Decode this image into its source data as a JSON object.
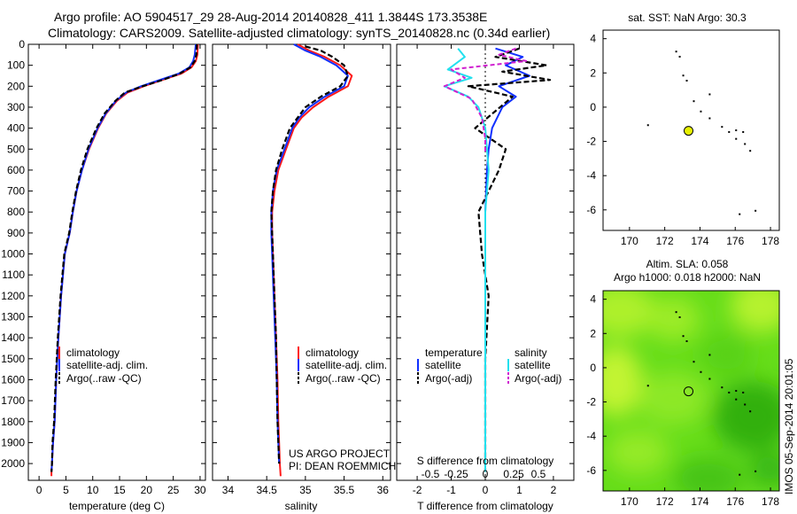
{
  "header": {
    "line1": "Argo profile: AO 5904517_29 28-Aug-2014 20140828_411 1.3844S 173.3538E",
    "line2": "Climatology: CARS2009. Satellite-adjusted climatology: synTS_20140828.nc (0.34d earlier)"
  },
  "side_label": "IMOS 05-Sep-2014 20:01:05",
  "colors": {
    "climatology": "#ff1a1a",
    "satellite": "#1030ff",
    "argo": "#000000",
    "salinity_satellite": "#22e0ee",
    "salinity_argo": "#d020d0",
    "float_marker": "#e6f000",
    "sla_field": "#66dd1a"
  },
  "chart_data": [
    {
      "type": "line",
      "id": "temperature-profile",
      "xlabel": "temperature (deg C)",
      "ylabel": "",
      "xlim": [
        -2,
        31
      ],
      "ylim": [
        2080,
        0
      ],
      "xticks": [
        0,
        5,
        10,
        15,
        20,
        25,
        30
      ],
      "yticks": [
        0,
        100,
        200,
        300,
        400,
        500,
        600,
        700,
        800,
        900,
        1000,
        1100,
        1200,
        1300,
        1400,
        1500,
        1600,
        1700,
        1800,
        1900,
        2000
      ],
      "legend": [
        "climatology",
        "satellite-adj. clim.",
        "Argo(..raw -QC)"
      ],
      "series": [
        {
          "name": "climatology",
          "x": [
            29.6,
            29.5,
            29.2,
            28.4,
            26.5,
            23.0,
            19.5,
            16.5,
            14.5,
            12.5,
            11.0,
            9.3,
            8.0,
            7.0,
            6.3,
            5.7,
            4.8,
            4.1,
            3.6,
            3.2,
            2.9,
            2.6,
            2.4,
            2.3,
            2.3
          ],
          "y": [
            0,
            50,
            80,
            110,
            140,
            170,
            200,
            230,
            270,
            330,
            400,
            500,
            600,
            700,
            800,
            900,
            1000,
            1200,
            1400,
            1600,
            1800,
            1900,
            2000,
            2040,
            2060
          ]
        },
        {
          "name": "satellite-adj. clim.",
          "x": [
            29.2,
            29.0,
            28.7,
            28.0,
            26.0,
            22.5,
            19.0,
            16.2,
            14.3,
            12.4,
            10.9,
            9.2,
            8.0,
            7.0,
            6.3,
            5.7,
            4.8,
            4.1,
            3.6,
            3.2,
            2.9,
            2.6,
            2.4,
            2.3
          ],
          "y": [
            0,
            50,
            80,
            110,
            140,
            170,
            200,
            230,
            270,
            330,
            400,
            500,
            600,
            700,
            800,
            900,
            1000,
            1200,
            1400,
            1600,
            1800,
            1900,
            2000,
            2040
          ]
        },
        {
          "name": "Argo(..raw -QC)",
          "x": [
            29.4,
            29.3,
            29.0,
            28.2,
            26.2,
            23.0,
            19.3,
            16.0,
            14.2,
            12.2,
            10.7,
            9.0,
            7.8,
            6.9,
            6.2,
            5.6,
            4.7,
            4.0,
            3.5,
            3.1,
            2.8,
            2.5,
            2.4,
            2.3
          ],
          "y": [
            0,
            50,
            80,
            110,
            140,
            170,
            200,
            230,
            270,
            330,
            400,
            500,
            600,
            700,
            800,
            900,
            1000,
            1200,
            1400,
            1600,
            1800,
            1900,
            2000,
            2040
          ]
        }
      ]
    },
    {
      "type": "line",
      "id": "salinity-profile",
      "xlabel": "salinity",
      "xlim": [
        33.8,
        36.1
      ],
      "ylim": [
        2080,
        0
      ],
      "xticks": [
        34,
        34.5,
        35,
        35.5,
        36
      ],
      "legend": [
        "climatology",
        "satellite-adj. clim.",
        "Argo(..raw -QC)"
      ],
      "annotation": [
        "US ARGO PROJECT",
        "PI: DEAN ROEMMICH"
      ],
      "series": [
        {
          "name": "climatology",
          "x": [
            34.9,
            35.05,
            35.25,
            35.45,
            35.6,
            35.55,
            35.3,
            35.1,
            34.95,
            34.85,
            34.75,
            34.65,
            34.6,
            34.57,
            34.57,
            34.58,
            34.6,
            34.62,
            34.64,
            34.65,
            34.66,
            34.67,
            34.68
          ],
          "y": [
            0,
            30,
            60,
            100,
            150,
            200,
            250,
            300,
            350,
            400,
            500,
            600,
            700,
            800,
            900,
            1000,
            1200,
            1400,
            1600,
            1800,
            1900,
            2000,
            2060
          ]
        },
        {
          "name": "satellite-adj. clim.",
          "x": [
            34.85,
            35.0,
            35.2,
            35.4,
            35.55,
            35.5,
            35.25,
            35.05,
            34.92,
            34.83,
            34.73,
            34.63,
            34.58,
            34.56,
            34.56,
            34.57,
            34.59,
            34.61,
            34.63,
            34.64,
            34.65,
            34.66
          ],
          "y": [
            0,
            30,
            60,
            100,
            150,
            200,
            250,
            300,
            350,
            400,
            500,
            600,
            700,
            800,
            900,
            1000,
            1200,
            1400,
            1600,
            1800,
            1900,
            2000
          ]
        },
        {
          "name": "Argo(..raw -QC)",
          "x": [
            35.0,
            35.2,
            35.35,
            35.5,
            35.55,
            35.45,
            35.2,
            35.0,
            34.9,
            34.8,
            34.7,
            34.62,
            34.58,
            34.56,
            34.57,
            34.58,
            34.6,
            34.62,
            34.63,
            34.64,
            34.65,
            34.66
          ],
          "y": [
            10,
            30,
            60,
            100,
            150,
            200,
            250,
            300,
            350,
            400,
            500,
            600,
            700,
            800,
            900,
            1000,
            1200,
            1400,
            1600,
            1800,
            1900,
            2000
          ]
        }
      ]
    },
    {
      "type": "line",
      "id": "difference-profile",
      "xlabel": "T difference from climatology",
      "xlabel_top": "S difference from climatology",
      "xlim": [
        -2.6,
        2.6
      ],
      "ylim": [
        2080,
        0
      ],
      "xticks": [
        -2,
        -1,
        0,
        1,
        2
      ],
      "top_ticks": [
        "-0.5",
        "-0.25",
        "0",
        "0.25",
        "0.5"
      ],
      "legend_temperature": {
        "title": "temperature",
        "items": [
          "satellite",
          "Argo(-adj)"
        ]
      },
      "legend_salinity": {
        "title": "salinity",
        "items": [
          "satellite",
          "Argo(-adj)"
        ]
      },
      "series": [
        {
          "name": "temperature satellite",
          "x": [
            0.3,
            1.1,
            0.6,
            1.3,
            0.4,
            0.9,
            0.5,
            0.2,
            0.1,
            0.05,
            0.0,
            0.0,
            0.0,
            0.0,
            0.0,
            0.0
          ],
          "y": [
            20,
            60,
            100,
            150,
            200,
            250,
            300,
            400,
            500,
            600,
            800,
            1000,
            1200,
            1500,
            1800,
            2040
          ]
        },
        {
          "name": "temperature Argo(-adj)",
          "x": [
            1.0,
            0.3,
            1.8,
            0.5,
            1.9,
            -0.5,
            0.8,
            -0.3,
            0.6,
            0.4,
            -0.2,
            -0.1,
            0.1,
            0.0,
            0.0,
            0.0
          ],
          "y": [
            20,
            60,
            100,
            130,
            170,
            200,
            250,
            400,
            500,
            600,
            800,
            1000,
            1200,
            1500,
            1800,
            2040
          ]
        },
        {
          "name": "salinity satellite",
          "x": [
            -0.8,
            -0.6,
            -1.1,
            -0.4,
            -1.2,
            -0.5,
            -0.2,
            0.0,
            0.1,
            0.0,
            0.0,
            0.0,
            0.0,
            0.0
          ],
          "y": [
            20,
            60,
            120,
            160,
            200,
            250,
            300,
            400,
            600,
            800,
            1000,
            1400,
            1800,
            2040
          ]
        },
        {
          "name": "salinity Argo(-adj)",
          "x": [
            0.9,
            0.4,
            1.2,
            -1.0,
            -0.6,
            -1.2,
            -0.4,
            -0.1,
            0.0,
            0.0
          ],
          "y": [
            20,
            50,
            80,
            120,
            160,
            200,
            260,
            350,
            450,
            520
          ]
        }
      ]
    },
    {
      "type": "scatter",
      "id": "sst-map",
      "title": "sat. SST: NaN Argo: 30.3",
      "xlim": [
        168.5,
        178.5
      ],
      "ylim": [
        -7.2,
        4.5
      ],
      "xticks": [
        170,
        172,
        174,
        176,
        178
      ],
      "yticks": [
        -6,
        -4,
        -2,
        0,
        2,
        4
      ],
      "float_position": {
        "x": 173.35,
        "y": -1.38
      }
    },
    {
      "type": "heatmap",
      "id": "sla-map",
      "title": "Altim. SLA: 0.058",
      "subtitle": "Argo h1000: 0.018 h2000: NaN",
      "xlim": [
        168.5,
        178.5
      ],
      "ylim": [
        -7.2,
        4.5
      ],
      "xticks": [
        170,
        172,
        174,
        176,
        178
      ],
      "yticks": [
        -6,
        -4,
        -2,
        0,
        2,
        4
      ],
      "float_position": {
        "x": 173.35,
        "y": -1.38
      }
    }
  ]
}
